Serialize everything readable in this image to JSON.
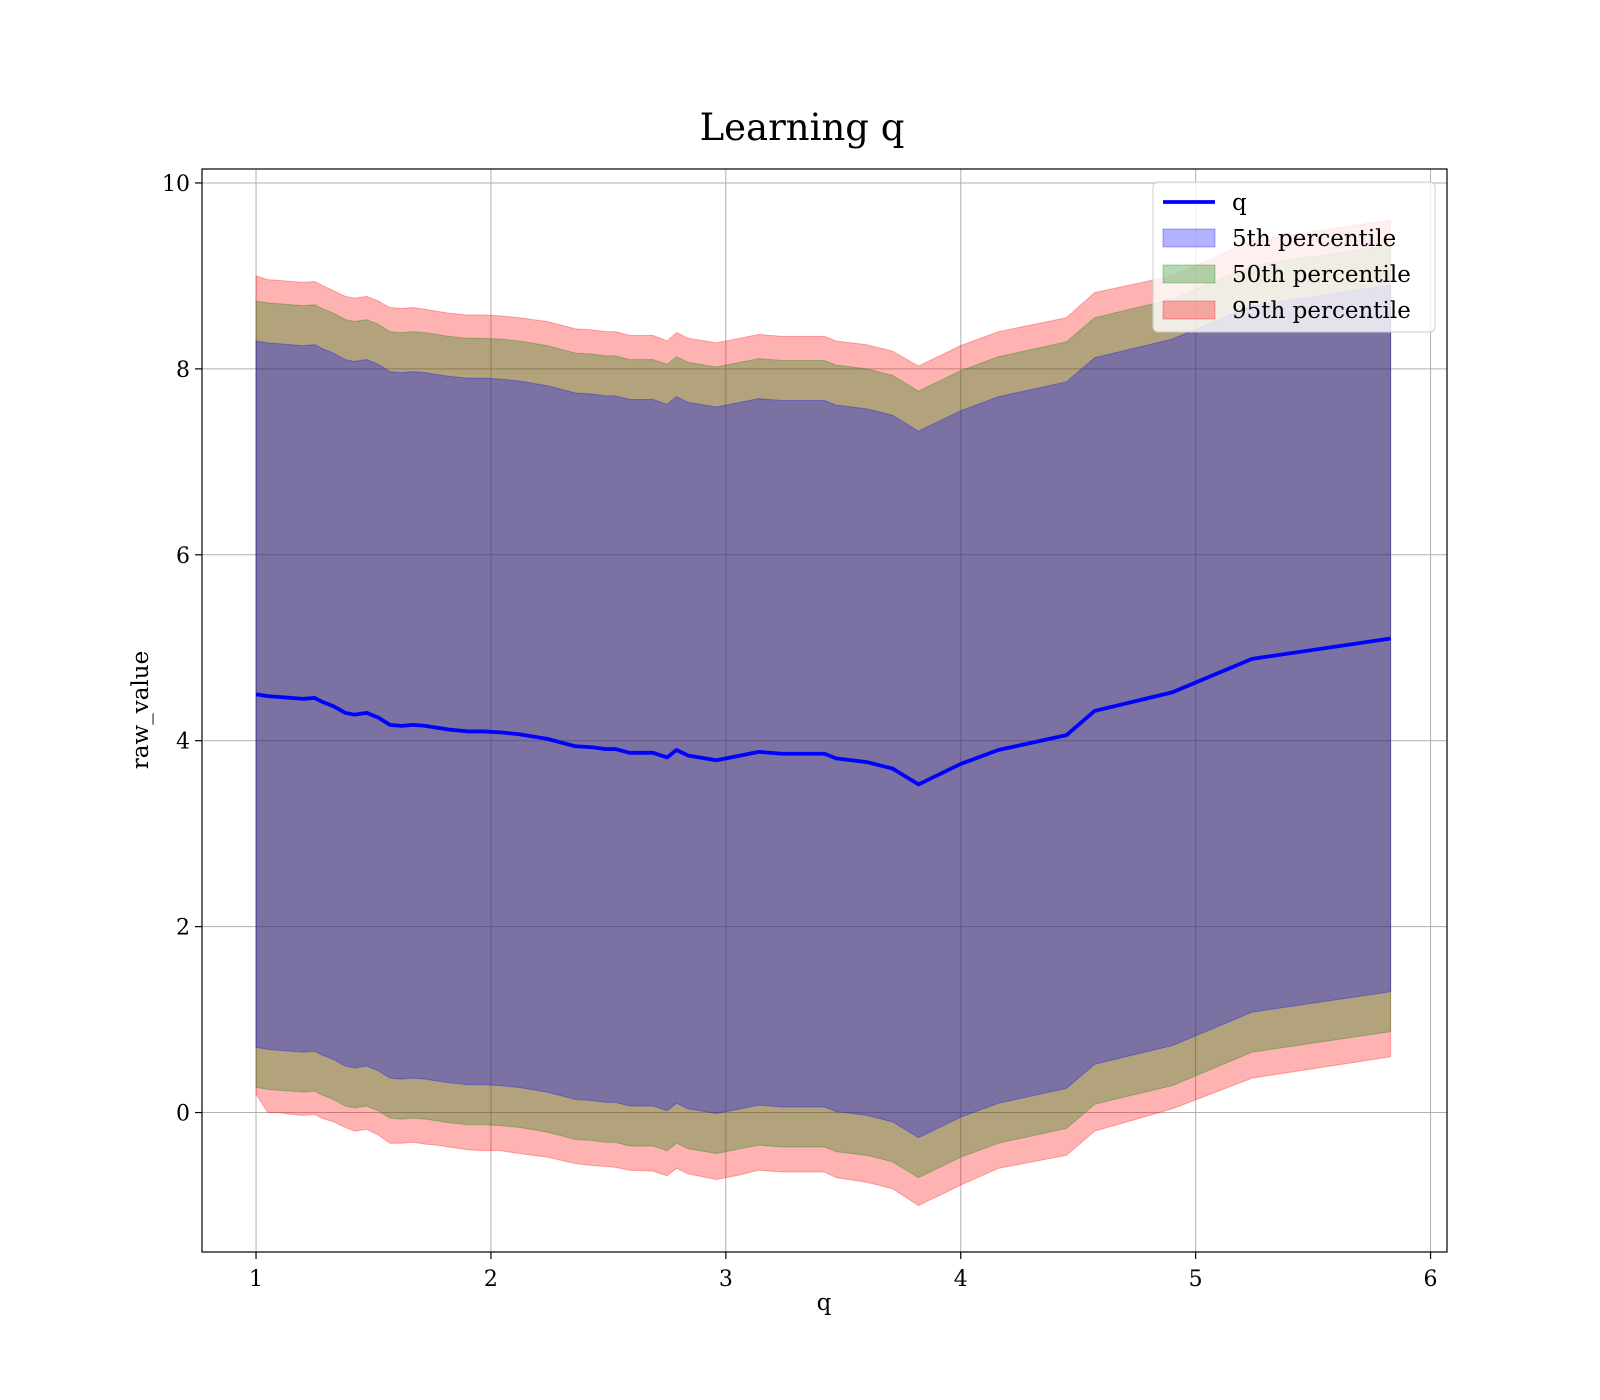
{
  "chart_data": {
    "type": "line",
    "title": "Learning q",
    "xlabel": "q",
    "ylabel": "raw_value",
    "xlim": [
      0.77,
      6.07
    ],
    "ylim": [
      -1.5,
      10.15
    ],
    "xticks": [
      1,
      2,
      3,
      4,
      5,
      6
    ],
    "yticks": [
      0,
      2,
      4,
      6,
      8,
      10
    ],
    "grid": true,
    "legend_position": "top-right",
    "legend": [
      {
        "label": "q",
        "kind": "line",
        "color": "#0000ff"
      },
      {
        "label": "5th percentile",
        "kind": "patch",
        "color": "#0000ff"
      },
      {
        "label": "50th percentile",
        "kind": "patch",
        "color": "#008000"
      },
      {
        "label": "95th percentile",
        "kind": "patch",
        "color": "#ff0000"
      }
    ],
    "x": [
      1.0,
      1.05,
      1.1,
      1.15,
      1.2,
      1.25,
      1.28,
      1.33,
      1.38,
      1.42,
      1.47,
      1.52,
      1.57,
      1.62,
      1.67,
      1.72,
      1.77,
      1.82,
      1.9,
      1.97,
      2.04,
      2.12,
      2.24,
      2.36,
      2.43,
      2.49,
      2.53,
      2.59,
      2.69,
      2.75,
      2.79,
      2.84,
      2.96,
      3.06,
      3.14,
      3.24,
      3.42,
      3.47,
      3.6,
      3.71,
      3.82,
      4.0,
      4.16,
      4.45,
      4.57,
      4.9,
      5.24,
      5.83
    ],
    "series": [
      {
        "name": "q",
        "color": "#0000ff",
        "values": [
          4.5,
          4.48,
          4.47,
          4.46,
          4.45,
          4.46,
          4.42,
          4.37,
          4.3,
          4.28,
          4.3,
          4.25,
          4.17,
          4.16,
          4.17,
          4.16,
          4.14,
          4.12,
          4.1,
          4.1,
          4.09,
          4.07,
          4.02,
          3.94,
          3.93,
          3.91,
          3.91,
          3.87,
          3.87,
          3.82,
          3.9,
          3.84,
          3.79,
          3.84,
          3.88,
          3.86,
          3.86,
          3.81,
          3.77,
          3.7,
          3.53,
          3.75,
          3.9,
          4.06,
          4.32,
          4.52,
          4.88,
          5.1
        ]
      }
    ],
    "bands": [
      {
        "name": "95th percentile",
        "color": "#ff0000",
        "opacity": 0.3,
        "lower": [
          0.2,
          0.0,
          0.0,
          -0.02,
          -0.03,
          -0.02,
          -0.06,
          -0.1,
          -0.16,
          -0.2,
          -0.18,
          -0.24,
          -0.33,
          -0.33,
          -0.32,
          -0.34,
          -0.35,
          -0.37,
          -0.4,
          -0.41,
          -0.41,
          -0.44,
          -0.48,
          -0.55,
          -0.57,
          -0.58,
          -0.59,
          -0.62,
          -0.63,
          -0.68,
          -0.6,
          -0.66,
          -0.72,
          -0.67,
          -0.62,
          -0.64,
          -0.64,
          -0.7,
          -0.75,
          -0.82,
          -1.0,
          -0.78,
          -0.6,
          -0.46,
          -0.2,
          0.04,
          0.37,
          0.6
        ],
        "upper": [
          9.0,
          8.96,
          8.95,
          8.94,
          8.93,
          8.94,
          8.9,
          8.84,
          8.78,
          8.76,
          8.78,
          8.73,
          8.66,
          8.65,
          8.66,
          8.64,
          8.62,
          8.6,
          8.58,
          8.58,
          8.57,
          8.55,
          8.51,
          8.43,
          8.42,
          8.4,
          8.4,
          8.36,
          8.36,
          8.3,
          8.39,
          8.33,
          8.28,
          8.33,
          8.37,
          8.35,
          8.35,
          8.3,
          8.26,
          8.19,
          8.03,
          8.25,
          8.4,
          8.55,
          8.82,
          9.0,
          9.38,
          9.6
        ]
      },
      {
        "name": "50th percentile",
        "color": "#008000",
        "opacity": 0.3,
        "lower": [
          0.27,
          0.25,
          0.24,
          0.23,
          0.22,
          0.23,
          0.19,
          0.14,
          0.07,
          0.05,
          0.07,
          0.02,
          -0.06,
          -0.07,
          -0.06,
          -0.07,
          -0.09,
          -0.11,
          -0.13,
          -0.13,
          -0.14,
          -0.16,
          -0.21,
          -0.29,
          -0.3,
          -0.32,
          -0.32,
          -0.36,
          -0.36,
          -0.41,
          -0.33,
          -0.39,
          -0.44,
          -0.39,
          -0.35,
          -0.37,
          -0.37,
          -0.42,
          -0.46,
          -0.53,
          -0.7,
          -0.48,
          -0.33,
          -0.17,
          0.09,
          0.29,
          0.65,
          0.87
        ],
        "upper": [
          8.73,
          8.71,
          8.7,
          8.69,
          8.68,
          8.69,
          8.65,
          8.6,
          8.53,
          8.51,
          8.53,
          8.48,
          8.4,
          8.39,
          8.4,
          8.39,
          8.37,
          8.35,
          8.33,
          8.33,
          8.32,
          8.3,
          8.25,
          8.17,
          8.16,
          8.14,
          8.14,
          8.1,
          8.1,
          8.05,
          8.13,
          8.07,
          8.02,
          8.07,
          8.11,
          8.09,
          8.09,
          8.04,
          8.0,
          7.93,
          7.76,
          7.98,
          8.13,
          8.29,
          8.55,
          8.75,
          9.11,
          9.33
        ]
      },
      {
        "name": "5th percentile",
        "color": "#0000ff",
        "opacity": 0.3,
        "lower": [
          0.7,
          0.68,
          0.67,
          0.66,
          0.65,
          0.66,
          0.62,
          0.57,
          0.5,
          0.48,
          0.5,
          0.45,
          0.37,
          0.36,
          0.37,
          0.36,
          0.34,
          0.32,
          0.3,
          0.3,
          0.29,
          0.27,
          0.22,
          0.14,
          0.13,
          0.11,
          0.11,
          0.07,
          0.07,
          0.02,
          0.1,
          0.04,
          -0.01,
          0.04,
          0.08,
          0.06,
          0.06,
          0.01,
          -0.03,
          -0.1,
          -0.27,
          -0.05,
          0.1,
          0.26,
          0.52,
          0.72,
          1.08,
          1.3
        ],
        "upper": [
          8.3,
          8.28,
          8.27,
          8.26,
          8.25,
          8.26,
          8.22,
          8.17,
          8.1,
          8.08,
          8.1,
          8.05,
          7.97,
          7.96,
          7.97,
          7.96,
          7.94,
          7.92,
          7.9,
          7.9,
          7.89,
          7.87,
          7.82,
          7.74,
          7.73,
          7.71,
          7.71,
          7.67,
          7.67,
          7.62,
          7.7,
          7.64,
          7.59,
          7.64,
          7.68,
          7.66,
          7.66,
          7.61,
          7.57,
          7.5,
          7.33,
          7.55,
          7.7,
          7.86,
          8.12,
          8.32,
          8.68,
          8.9
        ]
      }
    ]
  }
}
